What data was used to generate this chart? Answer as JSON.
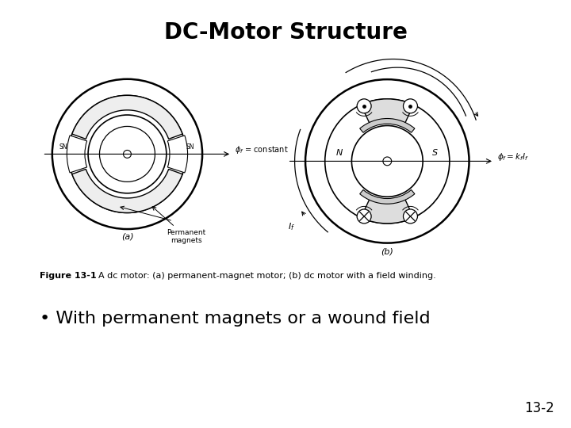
{
  "title": "DC-Motor Structure",
  "title_fontsize": 20,
  "title_fontweight": "bold",
  "bullet_text": "• With permanent magnets or a wound field",
  "bullet_fontsize": 16,
  "page_number": "13-2",
  "page_fontsize": 12,
  "fig_caption_bold": "Figure 13-1",
  "fig_caption_normal": "  A dc motor: (a) permanent-magnet motor; (b) dc motor with a field winding.",
  "fig_caption_fontsize": 8,
  "background_color": "#ffffff",
  "line_color": "#000000",
  "label_a": "(a)",
  "label_b": "(b)"
}
